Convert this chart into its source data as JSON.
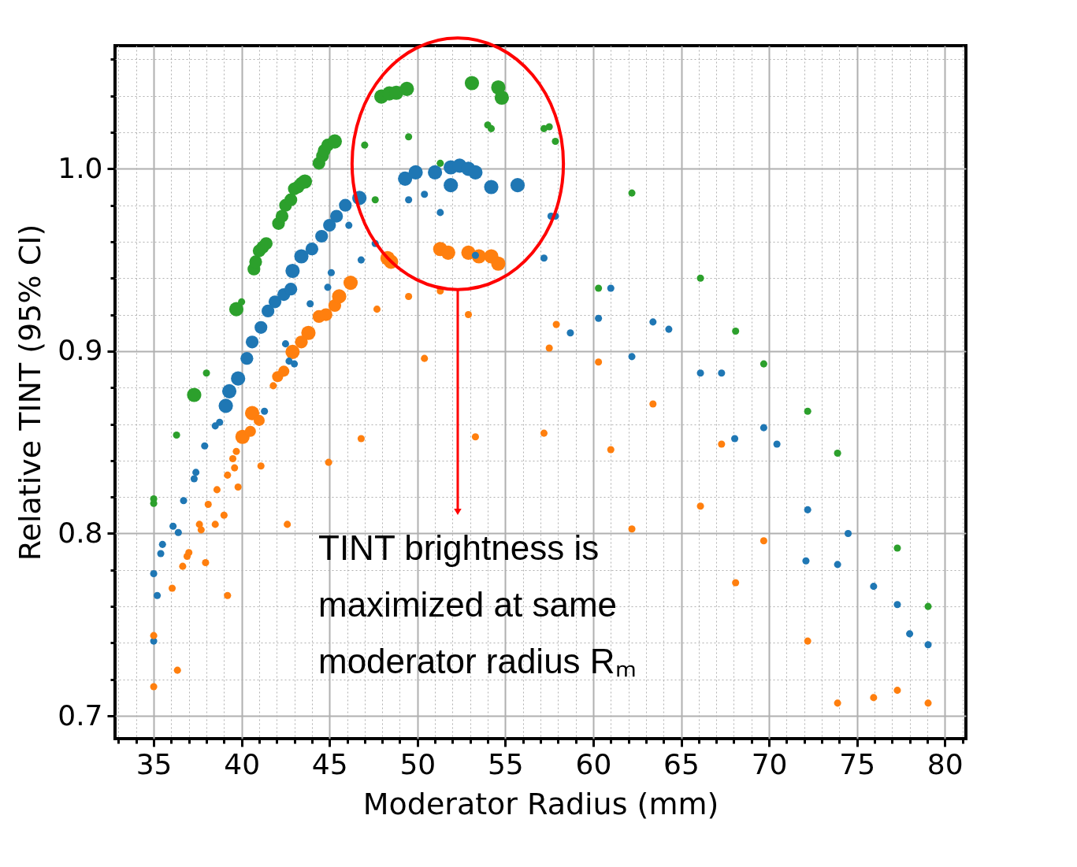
{
  "chart_data": {
    "type": "bubble",
    "xlabel": "Moderator Radius (mm)",
    "ylabel": "Relative TINT (95% CI)",
    "xlim": [
      32.8,
      81.2
    ],
    "ylim": [
      0.6875,
      1.0675
    ],
    "xticks": [
      {
        "value": 33,
        "label": null
      },
      {
        "value": 34,
        "label": null
      },
      35,
      {
        "value": 36,
        "label": null
      },
      {
        "value": 37,
        "label": null
      },
      {
        "value": 38,
        "label": null
      },
      {
        "value": 39,
        "label": null
      },
      40,
      {
        "value": 41,
        "label": null
      },
      {
        "value": 42,
        "label": null
      },
      {
        "value": 43,
        "label": null
      },
      {
        "value": 44,
        "label": null
      },
      45,
      {
        "value": 46,
        "label": null
      },
      {
        "value": 47,
        "label": null
      },
      {
        "value": 48,
        "label": null
      },
      {
        "value": 49,
        "label": null
      },
      50,
      {
        "value": 51,
        "label": null
      },
      {
        "value": 52,
        "label": null
      },
      {
        "value": 53,
        "label": null
      },
      {
        "value": 54,
        "label": null
      },
      55,
      {
        "value": 56,
        "label": null
      },
      {
        "value": 57,
        "label": null
      },
      {
        "value": 58,
        "label": null
      },
      {
        "value": 59,
        "label": null
      },
      60,
      {
        "value": 61,
        "label": null
      },
      {
        "value": 62,
        "label": null
      },
      {
        "value": 63,
        "label": null
      },
      {
        "value": 64,
        "label": null
      },
      65,
      {
        "value": 66,
        "label": null
      },
      {
        "value": 67,
        "label": null
      },
      {
        "value": 68,
        "label": null
      },
      {
        "value": 69,
        "label": null
      },
      70,
      {
        "value": 71,
        "label": null
      },
      {
        "value": 72,
        "label": null
      },
      {
        "value": 73,
        "label": null
      },
      {
        "value": 74,
        "label": null
      },
      75,
      {
        "value": 76,
        "label": null
      },
      {
        "value": 77,
        "label": null
      },
      {
        "value": 78,
        "label": null
      },
      {
        "value": 79,
        "label": null
      },
      80,
      {
        "value": 81,
        "label": null
      }
    ],
    "yticks": [
      {
        "value": 0.7,
        "label": "0.7"
      },
      {
        "value": 0.72,
        "label": null
      },
      {
        "value": 0.74,
        "label": null
      },
      {
        "value": 0.76,
        "label": null
      },
      {
        "value": 0.78,
        "label": null
      },
      {
        "value": 0.8,
        "label": "0.8"
      },
      {
        "value": 0.82,
        "label": null
      },
      {
        "value": 0.84,
        "label": null
      },
      {
        "value": 0.86,
        "label": null
      },
      {
        "value": 0.88,
        "label": null
      },
      {
        "value": 0.9,
        "label": "0.9"
      },
      {
        "value": 0.92,
        "label": null
      },
      {
        "value": 0.94,
        "label": null
      },
      {
        "value": 0.96,
        "label": null
      },
      {
        "value": 0.98,
        "label": null
      },
      {
        "value": 1.0,
        "label": "1.0"
      },
      {
        "value": 1.02,
        "label": null
      },
      {
        "value": 1.04,
        "label": null
      },
      {
        "value": 1.06,
        "label": null
      }
    ],
    "grid": true,
    "marker": "circle",
    "annotations": [
      "TINT brightness is\nmaximized at same\nmoderator radius Rₘ"
    ],
    "series": [
      {
        "color": "#2ca02c",
        "x": [
          35,
          35,
          36.3,
          37.3,
          38.0,
          39.7,
          40.0,
          40.7,
          40.8,
          41.0,
          41.2,
          41.4,
          42.1,
          42.3,
          42.5,
          42.8,
          43.0,
          43.2,
          43.4,
          43.6,
          44.4,
          44.6,
          44.7,
          44.9,
          45.3,
          47.0,
          47.6,
          47.95,
          48.4,
          48.8,
          49.4,
          49.5,
          51.3,
          53.1,
          54.0,
          54.2,
          54.6,
          54.8,
          57.2,
          57.5,
          57.85,
          62.2,
          60.3,
          66.1,
          68.1,
          69.7,
          72.2,
          73.9,
          77.3,
          79.05
        ],
        "values": [
          0.819,
          0.8165,
          0.854,
          0.876,
          0.888,
          0.923,
          0.927,
          0.945,
          0.949,
          0.955,
          0.957,
          0.959,
          0.97,
          0.974,
          0.98,
          0.983,
          0.989,
          0.99,
          0.992,
          0.993,
          1.003,
          1.007,
          1.01,
          1.013,
          1.015,
          1.013,
          0.983,
          1.0396,
          1.0413,
          1.0417,
          1.0438,
          1.0175,
          1.003,
          1.047,
          1.024,
          1.022,
          1.0446,
          1.039,
          1.022,
          1.023,
          1.015,
          0.9867,
          0.9345,
          0.94,
          0.911,
          0.893,
          0.867,
          0.844,
          0.792,
          0.76
        ],
        "sizes": [
          0.25,
          0.25,
          0.25,
          1,
          0.25,
          1,
          0.25,
          0.8,
          0.8,
          0.8,
          0.8,
          0.8,
          0.8,
          0.8,
          0.8,
          0.8,
          0.8,
          0.8,
          0.8,
          1,
          0.8,
          0.8,
          0.8,
          0.8,
          1,
          0.25,
          0.25,
          1,
          1,
          1,
          1,
          0.25,
          0.25,
          1,
          0.25,
          0.25,
          1,
          1,
          0.25,
          0.25,
          0.25,
          0.25,
          0.25,
          0.25,
          0.25,
          0.25,
          0.25,
          0.25,
          0.25,
          0.25
        ]
      },
      {
        "color": "#1f77b4",
        "x": [
          35,
          35,
          35.2,
          35.4,
          35.5,
          36.1,
          36.4,
          36.7,
          37.3,
          37.4,
          37.9,
          38.5,
          38.75,
          39.1,
          39.3,
          39.8,
          40.3,
          40.6,
          41.1,
          41.5,
          41.9,
          42.4,
          42.8,
          42.9,
          43.4,
          44.0,
          44.55,
          45.0,
          45.4,
          45.9,
          46.7,
          46.1,
          46.8,
          45.1,
          44.9,
          43.9,
          42.5,
          42.7,
          43.0,
          41.3,
          49.3,
          49.9,
          51.0,
          51.9,
          52.4,
          52.9,
          53.3,
          51.9,
          54.2,
          55.7,
          49.5,
          50.4,
          51.3,
          53.3,
          57.6,
          57.85,
          47.6,
          57.2,
          61.0,
          60.3,
          58.7,
          63.4,
          64.3,
          62.2,
          66.1,
          67.3,
          69.7,
          68.05,
          70.45,
          72.2,
          74.5,
          72.1,
          73.9,
          75.95,
          77.3,
          78.0,
          79.05
        ],
        "values": [
          0.778,
          0.741,
          0.766,
          0.789,
          0.794,
          0.804,
          0.8005,
          0.818,
          0.83,
          0.8335,
          0.848,
          0.859,
          0.861,
          0.87,
          0.878,
          0.885,
          0.896,
          0.905,
          0.913,
          0.922,
          0.927,
          0.931,
          0.934,
          0.944,
          0.952,
          0.956,
          0.963,
          0.969,
          0.974,
          0.98,
          0.984,
          0.969,
          0.95,
          0.943,
          0.935,
          0.926,
          0.904,
          0.8945,
          0.893,
          0.867,
          0.9946,
          0.998,
          0.998,
          1.0008,
          1.0017,
          1.0,
          0.998,
          0.991,
          0.99,
          0.991,
          0.983,
          0.986,
          0.976,
          0.9525,
          0.974,
          0.974,
          0.959,
          0.951,
          0.9345,
          0.918,
          0.91,
          0.916,
          0.912,
          0.897,
          0.888,
          0.888,
          0.858,
          0.852,
          0.849,
          0.813,
          0.8,
          0.785,
          0.783,
          0.771,
          0.761,
          0.745,
          0.739
        ],
        "sizes": [
          0.25,
          0.25,
          0.25,
          0.25,
          0.25,
          0.25,
          0.25,
          0.25,
          0.25,
          0.25,
          0.25,
          0.25,
          0.25,
          1,
          1,
          1,
          0.8,
          0.8,
          0.8,
          0.8,
          0.8,
          0.8,
          0.8,
          1,
          1,
          0.8,
          0.8,
          0.8,
          0.8,
          0.8,
          1,
          0.25,
          0.25,
          0.25,
          0.25,
          0.25,
          0.25,
          0.25,
          0.25,
          0.25,
          1,
          1,
          1,
          1,
          1,
          1,
          1,
          1,
          1,
          1,
          0.25,
          0.25,
          0.25,
          0.25,
          0.25,
          0.25,
          0.25,
          0.25,
          0.25,
          0.25,
          0.25,
          0.25,
          0.25,
          0.25,
          0.25,
          0.25,
          0.25,
          0.25,
          0.25,
          0.25,
          0.25,
          0.25,
          0.25,
          0.25,
          0.25,
          0.25,
          0.25
        ]
      },
      {
        "color": "#ff7f0e",
        "x": [
          35,
          35,
          36.35,
          36.05,
          36.65,
          36.9,
          37.0,
          37.95,
          37.6,
          37.7,
          38.5,
          39.0,
          38.1,
          39.2,
          38.6,
          39.8,
          39.2,
          39.6,
          39.5,
          39.7,
          41.1,
          42.6,
          44.95,
          46.8,
          40.05,
          40.5,
          40.6,
          41.0,
          41.8,
          42.05,
          42.4,
          42.9,
          43.4,
          43.8,
          44.4,
          44.8,
          45.3,
          45.55,
          46.2,
          47.7,
          48.3,
          48.5,
          51.3,
          51.75,
          52.9,
          53.5,
          54.2,
          54.6,
          49.5,
          51.3,
          52.9,
          57.9,
          57.5,
          53.3,
          50.4,
          57.2,
          60.3,
          63.4,
          61.0,
          67.3,
          66.1,
          62.2,
          69.7,
          68.1,
          72.2,
          73.9,
          75.95,
          77.3,
          79.05
        ],
        "values": [
          0.744,
          0.716,
          0.725,
          0.77,
          0.782,
          0.7875,
          0.7895,
          0.784,
          0.805,
          0.802,
          0.805,
          0.81,
          0.816,
          0.766,
          0.824,
          0.8255,
          0.832,
          0.836,
          0.841,
          0.845,
          0.837,
          0.805,
          0.839,
          0.852,
          0.853,
          0.856,
          0.866,
          0.862,
          0.881,
          0.886,
          0.889,
          0.8996,
          0.905,
          0.91,
          0.919,
          0.92,
          0.925,
          0.93,
          0.9375,
          0.923,
          0.951,
          0.949,
          0.956,
          0.954,
          0.954,
          0.952,
          0.952,
          0.948,
          0.93,
          0.933,
          0.92,
          0.9146,
          0.9017,
          0.853,
          0.896,
          0.855,
          0.894,
          0.871,
          0.846,
          0.849,
          0.815,
          0.8025,
          0.796,
          0.773,
          0.741,
          0.707,
          0.71,
          0.714,
          0.707
        ],
        "sizes": [
          0.25,
          0.25,
          0.25,
          0.25,
          0.25,
          0.25,
          0.25,
          0.25,
          0.25,
          0.25,
          0.25,
          0.25,
          0.25,
          0.25,
          0.25,
          0.25,
          0.25,
          0.25,
          0.25,
          0.25,
          0.25,
          0.25,
          0.25,
          0.25,
          1,
          0.6,
          1,
          0.6,
          0.25,
          0.6,
          0.6,
          1,
          0.8,
          1,
          0.8,
          0.8,
          0.8,
          1,
          1,
          0.25,
          1,
          1,
          1,
          1,
          1,
          1,
          1,
          1,
          0.25,
          0.25,
          0.25,
          0.25,
          0.25,
          0.25,
          0.25,
          0.25,
          0.25,
          0.25,
          0.25,
          0.25,
          0.25,
          0.25,
          0.25,
          0.25,
          0.25,
          0.25,
          0.25,
          0.25,
          0.25
        ]
      }
    ]
  }
}
